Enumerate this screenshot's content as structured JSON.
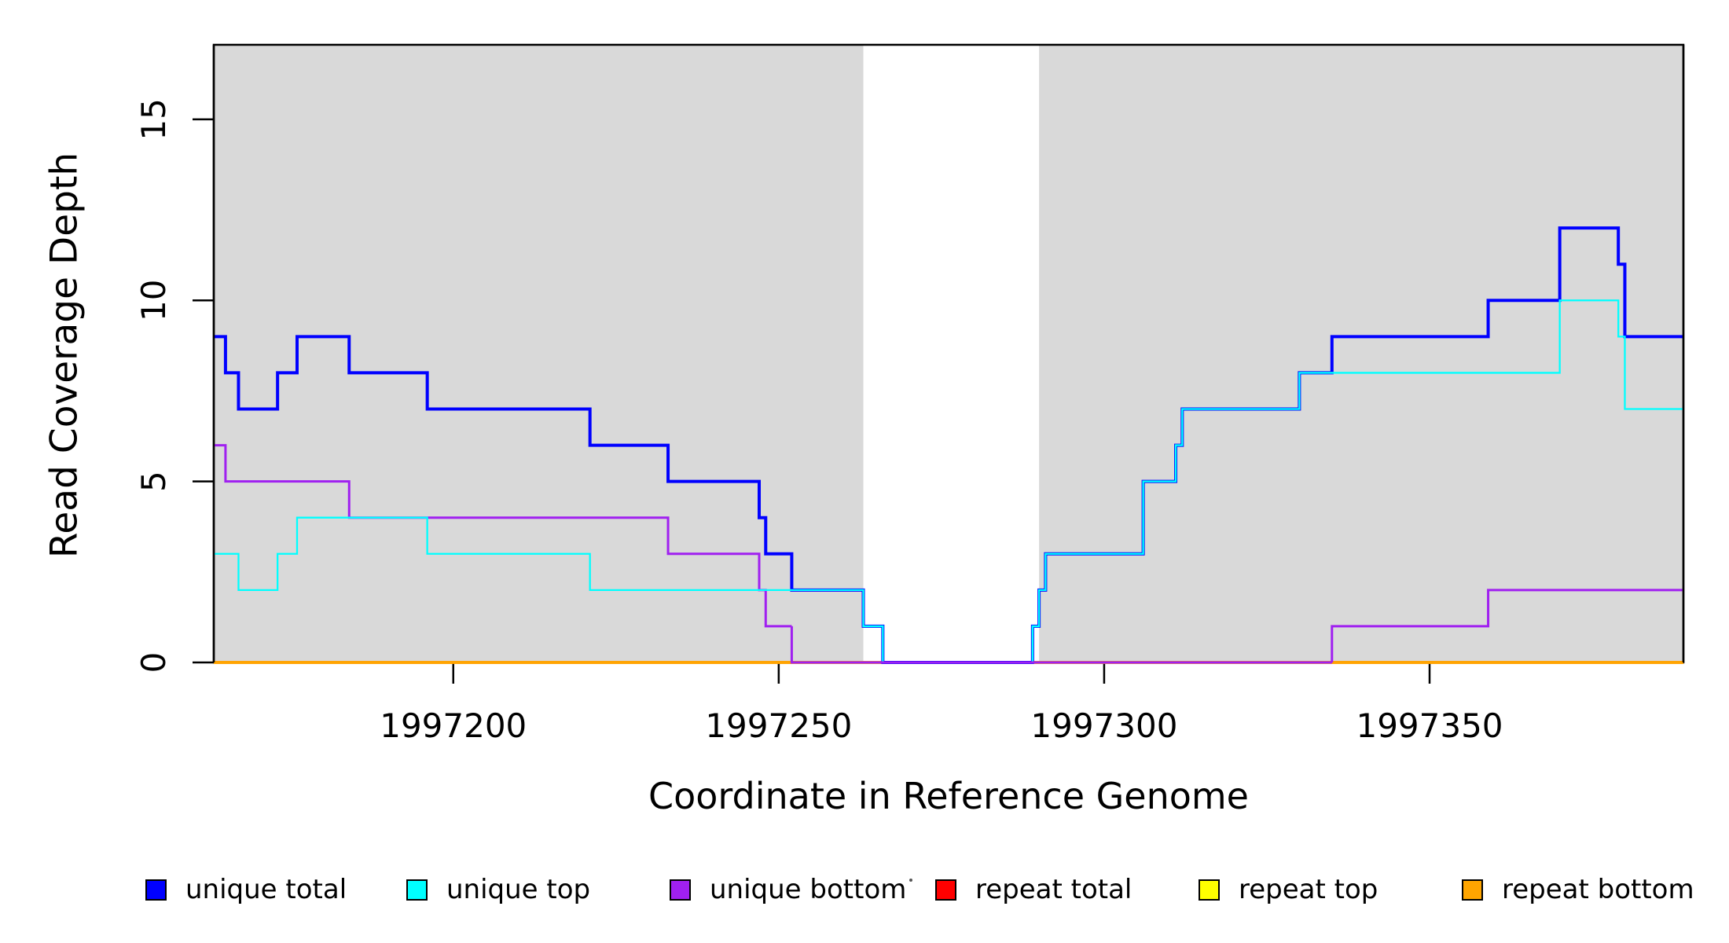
{
  "y_axis": {
    "label": "Read Coverage Depth",
    "ticks": [
      "0",
      "5",
      "10",
      "15"
    ]
  },
  "x_axis": {
    "label": "Coordinate in Reference Genome",
    "ticks": [
      "1997200",
      "1997250",
      "1997300",
      "1997350"
    ]
  },
  "legend": {
    "items": [
      {
        "label": "unique total",
        "color": "#0000FF"
      },
      {
        "label": "unique top",
        "color": "#00FFFF"
      },
      {
        "label": "unique bottom",
        "color": "#A020F0"
      },
      {
        "label": "repeat total",
        "color": "#FF0000"
      },
      {
        "label": "repeat top",
        "color": "#FFFF00"
      },
      {
        "label": "repeat bottom",
        "color": "#FFA500"
      }
    ]
  },
  "colors": {
    "shading": "#D9D9D9",
    "axis": "#000000",
    "background": "#FFFFFF"
  },
  "chart_data": {
    "type": "line",
    "subtype": "step-coverage",
    "title": "",
    "xlabel": "Coordinate in Reference Genome",
    "ylabel": "Read Coverage Depth",
    "xlim": [
      1997163.2,
      1997389.0
    ],
    "ylim": [
      0,
      17.06
    ],
    "x_ticks": [
      1997200,
      1997250,
      1997300,
      1997350
    ],
    "y_ticks": [
      0,
      5,
      10,
      15
    ],
    "grid": false,
    "legend_position": "bottom-horizontal",
    "shaded_regions": {
      "color": "#D9D9D9",
      "regions": [
        [
          1997163.2,
          1997263.0
        ],
        [
          1997290.0,
          1997389.0
        ]
      ]
    },
    "series": [
      {
        "name": "unique total",
        "color": "#0000FF",
        "line_width": 4,
        "x_end": 1997389,
        "steps": [
          [
            1997163,
            9
          ],
          [
            1997165,
            8
          ],
          [
            1997167,
            7
          ],
          [
            1997173,
            8
          ],
          [
            1997176,
            9
          ],
          [
            1997184,
            8
          ],
          [
            1997196,
            7
          ],
          [
            1997221,
            6
          ],
          [
            1997233,
            5
          ],
          [
            1997247,
            4
          ],
          [
            1997248,
            3
          ],
          [
            1997252,
            2
          ],
          [
            1997263,
            1
          ],
          [
            1997266,
            0
          ],
          [
            1997289,
            1
          ],
          [
            1997290,
            2
          ],
          [
            1997291,
            3
          ],
          [
            1997306,
            5
          ],
          [
            1997311,
            6
          ],
          [
            1997312,
            7
          ],
          [
            1997330,
            8
          ],
          [
            1997335,
            9
          ],
          [
            1997359,
            10
          ],
          [
            1997370,
            12
          ],
          [
            1997379,
            11
          ],
          [
            1997380,
            9
          ]
        ]
      },
      {
        "name": "unique top",
        "color": "#00FFFF",
        "line_width": 2.3,
        "x_end": 1997389,
        "steps": [
          [
            1997163,
            3
          ],
          [
            1997167,
            2
          ],
          [
            1997173,
            3
          ],
          [
            1997176,
            4
          ],
          [
            1997196,
            3
          ],
          [
            1997221,
            2
          ],
          [
            1997263,
            1
          ],
          [
            1997266,
            0
          ],
          [
            1997289,
            1
          ],
          [
            1997290,
            2
          ],
          [
            1997291,
            3
          ],
          [
            1997306,
            5
          ],
          [
            1997311,
            6
          ],
          [
            1997312,
            7
          ],
          [
            1997330,
            8
          ],
          [
            1997370,
            10
          ],
          [
            1997379,
            9
          ],
          [
            1997380,
            7
          ]
        ]
      },
      {
        "name": "unique bottom",
        "color": "#A020F0",
        "line_width": 3,
        "x_end": 1997389,
        "steps": [
          [
            1997163,
            6
          ],
          [
            1997165,
            5
          ],
          [
            1997184,
            4
          ],
          [
            1997233,
            3
          ],
          [
            1997247,
            2
          ],
          [
            1997248,
            1
          ],
          [
            1997252,
            0
          ],
          [
            1997335,
            1
          ],
          [
            1997359,
            2
          ]
        ]
      },
      {
        "name": "repeat total",
        "color": "#FF0000",
        "line_width": 3.5,
        "x_end": 1997389,
        "steps": [
          [
            1997163,
            0
          ]
        ]
      },
      {
        "name": "repeat top",
        "color": "#FFFF00",
        "line_width": 3.2,
        "x_end": 1997389,
        "steps": [
          [
            1997163,
            0
          ]
        ]
      },
      {
        "name": "repeat bottom",
        "color": "#FFA500",
        "line_width": 3.8,
        "x_end": 1997389,
        "steps": [
          [
            1997163,
            0
          ]
        ]
      }
    ]
  }
}
